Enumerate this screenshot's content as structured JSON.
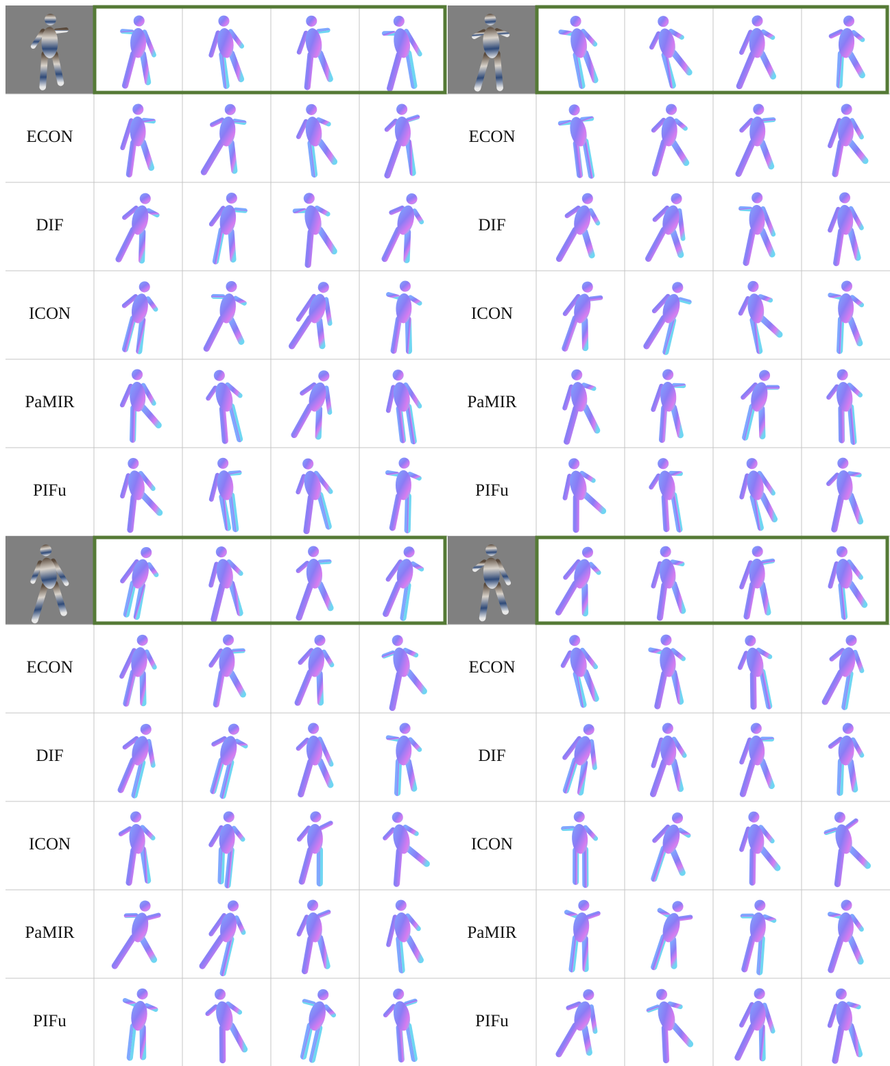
{
  "panels": [
    {
      "methods": [
        "ECON",
        "DIF",
        "ICON",
        "PaMIR",
        "PIFu"
      ]
    },
    {
      "methods": [
        "ECON",
        "DIF",
        "ICON",
        "PaMIR",
        "PIFu"
      ]
    },
    {
      "methods": [
        "ECON",
        "DIF",
        "ICON",
        "PaMIR",
        "PIFu"
      ]
    },
    {
      "methods": [
        "ECON",
        "DIF",
        "ICON",
        "PaMIR",
        "PIFu"
      ]
    }
  ]
}
